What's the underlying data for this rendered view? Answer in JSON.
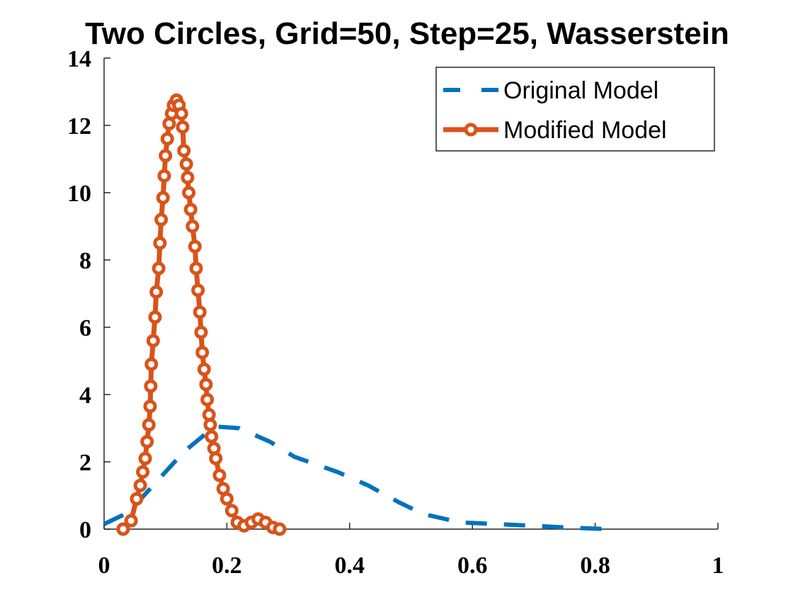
{
  "chart_data": {
    "type": "line",
    "title": "Two Circles, Grid=50, Step=25, Wasserstein",
    "xlim": [
      0,
      1
    ],
    "xticks": [
      0,
      0.2,
      0.4,
      0.6,
      0.8,
      1
    ],
    "ylim": [
      0,
      14
    ],
    "yticks": [
      0,
      2,
      4,
      6,
      8,
      10,
      12,
      14
    ],
    "grid": false,
    "legend": "northeast",
    "series": [
      {
        "name": "Original Model",
        "color": "#0072bd",
        "linestyle": "--",
        "marker": "none",
        "x": [
          0,
          0.04,
          0.08,
          0.13,
          0.18,
          0.22,
          0.27,
          0.31,
          0.38,
          0.43,
          0.48,
          0.52,
          0.58,
          0.64,
          0.7,
          0.75,
          0.82
        ],
        "values": [
          0.15,
          0.5,
          1.3,
          2.3,
          3.05,
          3.0,
          2.6,
          2.15,
          1.7,
          1.3,
          0.8,
          0.45,
          0.2,
          0.15,
          0.1,
          0.05,
          0
        ]
      },
      {
        "name": "Modified Model",
        "color": "#d95319",
        "linestyle": "-",
        "marker": "o",
        "x": [
          0.031,
          0.044,
          0.053,
          0.059,
          0.063,
          0.067,
          0.07,
          0.073,
          0.075,
          0.076,
          0.077,
          0.08,
          0.083,
          0.085,
          0.089,
          0.091,
          0.093,
          0.096,
          0.098,
          0.1,
          0.103,
          0.106,
          0.11,
          0.113,
          0.118,
          0.122,
          0.126,
          0.128,
          0.13,
          0.134,
          0.136,
          0.138,
          0.141,
          0.144,
          0.148,
          0.15,
          0.153,
          0.156,
          0.158,
          0.16,
          0.163,
          0.166,
          0.168,
          0.171,
          0.173,
          0.175,
          0.179,
          0.182,
          0.188,
          0.194,
          0.2,
          0.208,
          0.217,
          0.228,
          0.24,
          0.251,
          0.263,
          0.275,
          0.286
        ],
        "values": [
          0,
          0.25,
          0.9,
          1.3,
          1.7,
          2.1,
          2.6,
          3.1,
          3.65,
          4.25,
          4.9,
          5.6,
          6.3,
          7.05,
          7.75,
          8.5,
          9.2,
          9.85,
          10.5,
          11.1,
          11.6,
          12.05,
          12.35,
          12.6,
          12.75,
          12.6,
          12.35,
          11.95,
          11.25,
          10.85,
          10.45,
          10.0,
          9.5,
          9.0,
          8.4,
          7.75,
          7.1,
          6.45,
          5.85,
          5.25,
          4.75,
          4.3,
          3.85,
          3.4,
          3.1,
          2.75,
          2.4,
          2.1,
          1.6,
          1.2,
          0.9,
          0.55,
          0.2,
          0.1,
          0.2,
          0.3,
          0.2,
          0.05,
          0
        ]
      }
    ]
  }
}
